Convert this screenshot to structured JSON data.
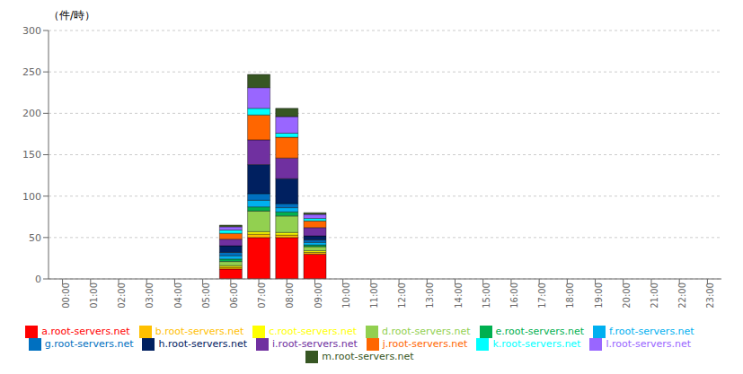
{
  "chart_data": {
    "type": "bar",
    "stacked": true,
    "ylabel": "（件/時）",
    "categories": [
      "00:00",
      "01:00",
      "02:00",
      "03:00",
      "04:00",
      "05:00",
      "06:00",
      "07:00",
      "08:00",
      "09:00",
      "10:00",
      "11:00",
      "12:00",
      "13:00",
      "14:00",
      "15:00",
      "16:00",
      "17:00",
      "18:00",
      "19:00",
      "20:00",
      "21:00",
      "22:00",
      "23:00"
    ],
    "series": [
      {
        "name": "a.root-servers.net",
        "color": "#FF0000",
        "values": [
          0,
          0,
          0,
          0,
          0,
          0,
          12,
          50,
          50,
          30,
          0,
          0,
          0,
          0,
          0,
          0,
          0,
          0,
          0,
          0,
          0,
          0,
          0,
          0
        ]
      },
      {
        "name": "b.root-servers.net",
        "color": "#FFC000",
        "values": [
          0,
          0,
          0,
          0,
          0,
          0,
          2,
          4,
          3,
          2,
          0,
          0,
          0,
          0,
          0,
          0,
          0,
          0,
          0,
          0,
          0,
          0,
          0,
          0
        ]
      },
      {
        "name": "c.root-servers.net",
        "color": "#FFFF00",
        "values": [
          0,
          0,
          0,
          0,
          0,
          0,
          2,
          3,
          3,
          2,
          0,
          0,
          0,
          0,
          0,
          0,
          0,
          0,
          0,
          0,
          0,
          0,
          0,
          0
        ]
      },
      {
        "name": "d.root-servers.net",
        "color": "#92D050",
        "values": [
          0,
          0,
          0,
          0,
          0,
          0,
          5,
          25,
          20,
          5,
          0,
          0,
          0,
          0,
          0,
          0,
          0,
          0,
          0,
          0,
          0,
          0,
          0,
          0
        ]
      },
      {
        "name": "e.root-servers.net",
        "color": "#00B050",
        "values": [
          0,
          0,
          0,
          0,
          0,
          0,
          3,
          5,
          5,
          2,
          0,
          0,
          0,
          0,
          0,
          0,
          0,
          0,
          0,
          0,
          0,
          0,
          0,
          0
        ]
      },
      {
        "name": "f.root-servers.net",
        "color": "#00B0F0",
        "values": [
          0,
          0,
          0,
          0,
          0,
          0,
          4,
          8,
          5,
          3,
          0,
          0,
          0,
          0,
          0,
          0,
          0,
          0,
          0,
          0,
          0,
          0,
          0,
          0
        ]
      },
      {
        "name": "g.root-servers.net",
        "color": "#0070C0",
        "values": [
          0,
          0,
          0,
          0,
          0,
          0,
          4,
          8,
          5,
          3,
          0,
          0,
          0,
          0,
          0,
          0,
          0,
          0,
          0,
          0,
          0,
          0,
          0,
          0
        ]
      },
      {
        "name": "h.root-servers.net",
        "color": "#002060",
        "values": [
          0,
          0,
          0,
          0,
          0,
          0,
          8,
          35,
          30,
          5,
          0,
          0,
          0,
          0,
          0,
          0,
          0,
          0,
          0,
          0,
          0,
          0,
          0,
          0
        ]
      },
      {
        "name": "i.root-servers.net",
        "color": "#7030A0",
        "values": [
          0,
          0,
          0,
          0,
          0,
          0,
          8,
          30,
          25,
          10,
          0,
          0,
          0,
          0,
          0,
          0,
          0,
          0,
          0,
          0,
          0,
          0,
          0,
          0
        ]
      },
      {
        "name": "j.root-servers.net",
        "color": "#FF6600",
        "values": [
          0,
          0,
          0,
          0,
          0,
          0,
          7,
          30,
          25,
          8,
          0,
          0,
          0,
          0,
          0,
          0,
          0,
          0,
          0,
          0,
          0,
          0,
          0,
          0
        ]
      },
      {
        "name": "k.root-servers.net",
        "color": "#00FFFF",
        "values": [
          0,
          0,
          0,
          0,
          0,
          0,
          4,
          8,
          5,
          3,
          0,
          0,
          0,
          0,
          0,
          0,
          0,
          0,
          0,
          0,
          0,
          0,
          0,
          0
        ]
      },
      {
        "name": "l.root-servers.net",
        "color": "#9966FF",
        "values": [
          0,
          0,
          0,
          0,
          0,
          0,
          4,
          25,
          20,
          5,
          0,
          0,
          0,
          0,
          0,
          0,
          0,
          0,
          0,
          0,
          0,
          0,
          0,
          0
        ]
      },
      {
        "name": "m.root-servers.net",
        "color": "#375623",
        "values": [
          0,
          0,
          0,
          0,
          0,
          0,
          2,
          16,
          10,
          2,
          0,
          0,
          0,
          0,
          0,
          0,
          0,
          0,
          0,
          0,
          0,
          0,
          0,
          0
        ]
      }
    ],
    "ylim": [
      0,
      300
    ],
    "yticks": [
      0,
      50,
      100,
      150,
      200,
      250,
      300
    ],
    "grid": true,
    "legend": "bottom"
  }
}
